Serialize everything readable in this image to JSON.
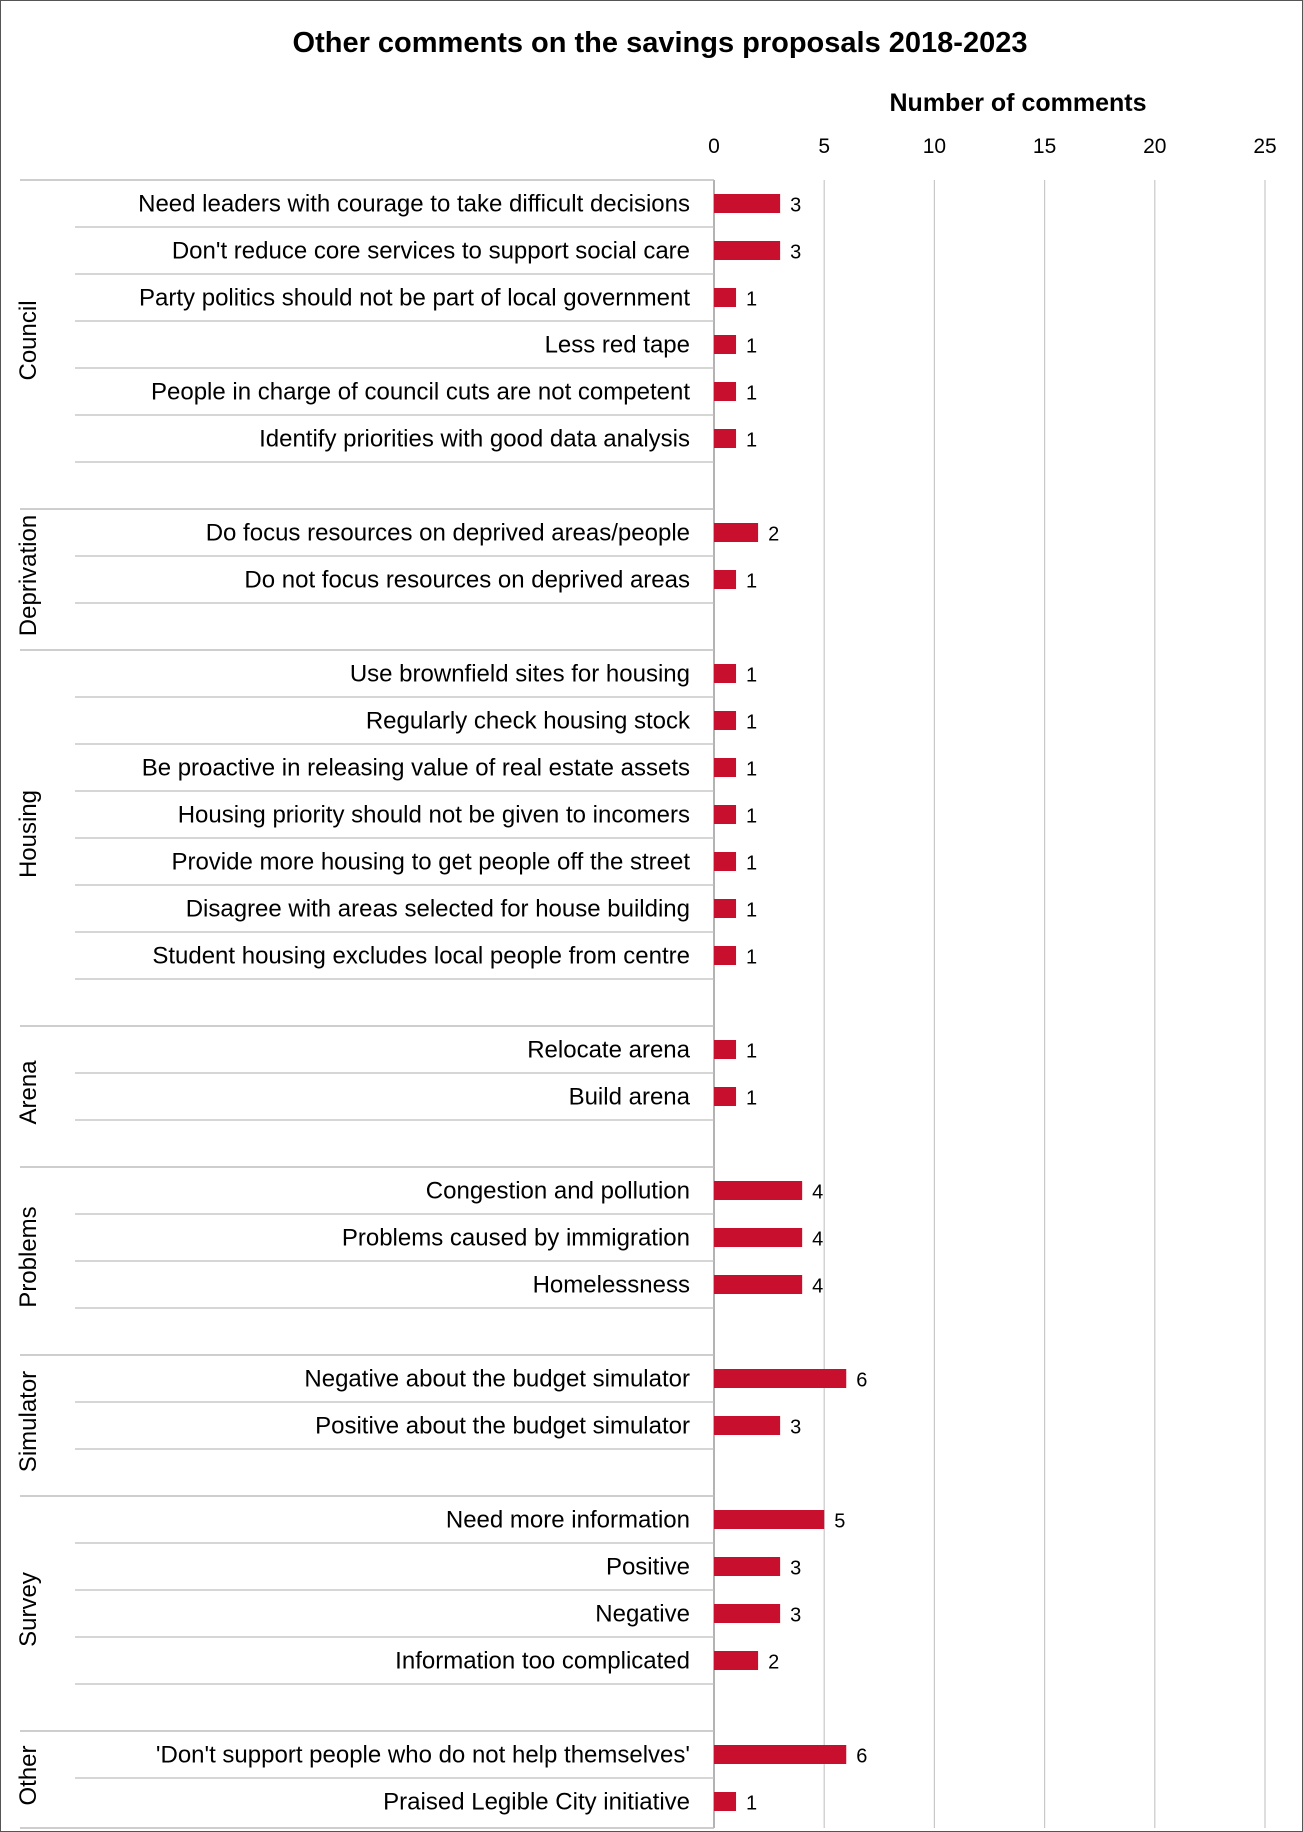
{
  "chart_data": {
    "type": "bar",
    "orientation": "horizontal",
    "title": "Other comments on the savings proposals 2018-2023",
    "xlabel": "Number of comments",
    "xlim": [
      0,
      25
    ],
    "ticks": [
      "0",
      "5",
      "10",
      "15",
      "20",
      "25"
    ],
    "bar_color": "#C8102E",
    "groups": [
      {
        "name": "Council",
        "items": [
          {
            "label": "Need leaders with courage to take difficult decisions",
            "value": 3
          },
          {
            "label": "Don't reduce core services to support social care",
            "value": 3
          },
          {
            "label": "Party politics should not be part of local government",
            "value": 1
          },
          {
            "label": "Less red tape",
            "value": 1
          },
          {
            "label": "People in charge of council cuts are not competent",
            "value": 1
          },
          {
            "label": "Identify priorities with good data analysis",
            "value": 1
          }
        ]
      },
      {
        "name": "Deprivation",
        "items": [
          {
            "label": "Do focus resources on deprived areas/people",
            "value": 2
          },
          {
            "label": "Do not focus resources on deprived areas",
            "value": 1
          }
        ]
      },
      {
        "name": "Housing",
        "items": [
          {
            "label": "Use brownfield sites for housing",
            "value": 1
          },
          {
            "label": "Regularly check housing stock",
            "value": 1
          },
          {
            "label": "Be proactive in releasing  value of real estate assets",
            "value": 1
          },
          {
            "label": "Housing priority should not be given to incomers",
            "value": 1
          },
          {
            "label": "Provide more housing to get people off the street",
            "value": 1
          },
          {
            "label": "Disagree with areas selected for house building",
            "value": 1
          },
          {
            "label": "Student housing excludes local people from centre",
            "value": 1
          }
        ]
      },
      {
        "name": "Arena",
        "items": [
          {
            "label": "Relocate arena",
            "value": 1
          },
          {
            "label": "Build arena",
            "value": 1
          }
        ]
      },
      {
        "name": "Problems",
        "items": [
          {
            "label": "Congestion and pollution",
            "value": 4
          },
          {
            "label": "Problems caused by immigration",
            "value": 4
          },
          {
            "label": "Homelessness",
            "value": 4
          }
        ]
      },
      {
        "name": "Simulator",
        "items": [
          {
            "label": "Negative about the budget simulator",
            "value": 6
          },
          {
            "label": "Positive about the budget simulator",
            "value": 3
          }
        ]
      },
      {
        "name": "Survey",
        "items": [
          {
            "label": "Need more information",
            "value": 5
          },
          {
            "label": "Positive",
            "value": 3
          },
          {
            "label": "Negative",
            "value": 3
          },
          {
            "label": "Information too complicated",
            "value": 2
          }
        ]
      },
      {
        "name": "Other",
        "items": [
          {
            "label": "'Don't support people who do not help themselves'",
            "value": 6
          },
          {
            "label": "Praised Legible City initiative",
            "value": 1
          }
        ]
      }
    ]
  }
}
